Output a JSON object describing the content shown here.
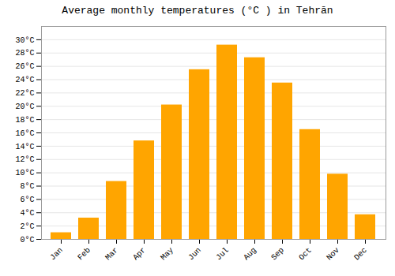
{
  "chart_data": {
    "type": "bar",
    "title": "Average monthly temperatures (°C ) in Tehrān",
    "categories": [
      "Jan",
      "Feb",
      "Mar",
      "Apr",
      "May",
      "Jun",
      "Jul",
      "Aug",
      "Sep",
      "Oct",
      "Nov",
      "Dec"
    ],
    "values": [
      1.0,
      3.2,
      8.7,
      14.8,
      20.2,
      25.5,
      29.2,
      27.3,
      23.5,
      16.5,
      9.8,
      3.7
    ],
    "color": "#FFA500",
    "ylim": [
      0,
      32
    ],
    "yticks": [
      {
        "value": 0,
        "label": "0°C"
      },
      {
        "value": 2,
        "label": "2°C"
      },
      {
        "value": 4,
        "label": "4°C"
      },
      {
        "value": 6,
        "label": "6°C"
      },
      {
        "value": 8,
        "label": "8°C"
      },
      {
        "value": 10,
        "label": "10°C"
      },
      {
        "value": 12,
        "label": "12°C"
      },
      {
        "value": 14,
        "label": "14°C"
      },
      {
        "value": 16,
        "label": "16°C"
      },
      {
        "value": 18,
        "label": "18°C"
      },
      {
        "value": 20,
        "label": "20°C"
      },
      {
        "value": 22,
        "label": "22°C"
      },
      {
        "value": 24,
        "label": "24°C"
      },
      {
        "value": 26,
        "label": "26°C"
      },
      {
        "value": 28,
        "label": "28°C"
      },
      {
        "value": 30,
        "label": "30°C"
      }
    ],
    "grid": true
  }
}
